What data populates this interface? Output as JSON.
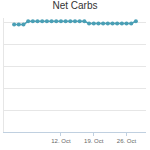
{
  "chart_data": {
    "type": "line",
    "title": "Net Carbs",
    "categories": [
      null,
      null,
      null,
      null,
      null,
      null,
      null,
      null,
      null,
      null,
      "12. Oct",
      null,
      null,
      null,
      null,
      null,
      null,
      "19. Oct",
      null,
      null,
      null,
      null,
      null,
      null,
      "26. Oct",
      null,
      null
    ],
    "values": [
      49,
      49,
      49,
      50.5,
      50.5,
      50.5,
      50.5,
      50.5,
      50.5,
      50.5,
      50.5,
      50.5,
      50.5,
      50.5,
      50.5,
      50.5,
      49.5,
      49.5,
      49.5,
      49.5,
      49.5,
      49.5,
      49.5,
      49.5,
      49.5,
      49.5,
      50.5
    ],
    "color": "#4a9fb5",
    "marker": "circle",
    "ylim": [
      0,
      52
    ],
    "yticks": [
      0,
      10,
      20,
      30,
      40,
      50
    ],
    "grid": true,
    "tick_labels": "x"
  }
}
